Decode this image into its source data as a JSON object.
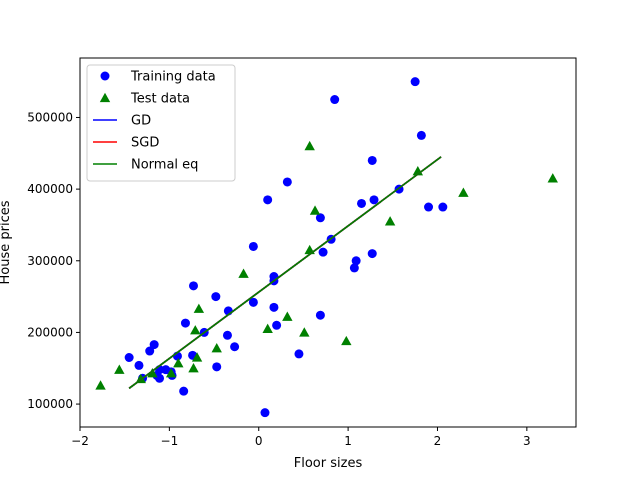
{
  "chart_data": {
    "type": "scatter",
    "title": "",
    "xlabel": "Floor sizes",
    "ylabel": "House prices",
    "xlim": [
      -2.0,
      3.55
    ],
    "ylim": [
      68000,
      583000
    ],
    "xticks": [
      -2,
      -1,
      0,
      1,
      2,
      3
    ],
    "xtick_labels": [
      "−2",
      "−1",
      "0",
      "1",
      "2",
      "3"
    ],
    "yticks": [
      100000,
      200000,
      300000,
      400000,
      500000
    ],
    "ytick_labels": [
      "100000",
      "200000",
      "300000",
      "400000",
      "500000"
    ],
    "grid": false,
    "legend_position": "top-left",
    "series": [
      {
        "name": "Training data",
        "kind": "points",
        "marker": "circle",
        "color": "#0000ff",
        "points": [
          [
            1.75,
            550000
          ],
          [
            0.85,
            525000
          ],
          [
            1.82,
            475000
          ],
          [
            1.27,
            440000
          ],
          [
            0.32,
            410000
          ],
          [
            1.29,
            385000
          ],
          [
            0.1,
            385000
          ],
          [
            1.57,
            400000
          ],
          [
            1.15,
            380000
          ],
          [
            1.9,
            375000
          ],
          [
            2.06,
            375000
          ],
          [
            0.69,
            360000
          ],
          [
            0.81,
            330000
          ],
          [
            -0.06,
            320000
          ],
          [
            0.72,
            312000
          ],
          [
            1.27,
            310000
          ],
          [
            1.09,
            300000
          ],
          [
            1.07,
            290000
          ],
          [
            0.17,
            278000
          ],
          [
            0.17,
            272000
          ],
          [
            -0.73,
            265000
          ],
          [
            -0.48,
            250000
          ],
          [
            -0.06,
            242000
          ],
          [
            0.17,
            235000
          ],
          [
            -0.34,
            230000
          ],
          [
            0.2,
            210000
          ],
          [
            -0.82,
            213000
          ],
          [
            0.69,
            224000
          ],
          [
            -0.61,
            200000
          ],
          [
            -0.35,
            196000
          ],
          [
            -0.27,
            180000
          ],
          [
            -1.17,
            183000
          ],
          [
            -1.22,
            174000
          ],
          [
            0.45,
            170000
          ],
          [
            -0.74,
            168000
          ],
          [
            -0.91,
            167000
          ],
          [
            -1.45,
            165000
          ],
          [
            -1.34,
            154000
          ],
          [
            -0.47,
            152000
          ],
          [
            -1.11,
            148000
          ],
          [
            -1.04,
            148000
          ],
          [
            -0.98,
            145000
          ],
          [
            -1.14,
            140000
          ],
          [
            -0.97,
            140000
          ],
          [
            -1.3,
            136000
          ],
          [
            -1.11,
            136000
          ],
          [
            -0.84,
            118000
          ],
          [
            0.07,
            88000
          ]
        ]
      },
      {
        "name": "Test data",
        "kind": "points",
        "marker": "triangle",
        "color": "#008000",
        "points": [
          [
            0.57,
            460000
          ],
          [
            1.78,
            425000
          ],
          [
            3.29,
            415000
          ],
          [
            2.29,
            395000
          ],
          [
            1.47,
            355000
          ],
          [
            0.63,
            370000
          ],
          [
            0.57,
            315000
          ],
          [
            -0.17,
            282000
          ],
          [
            0.32,
            222000
          ],
          [
            0.1,
            205000
          ],
          [
            -0.67,
            233000
          ],
          [
            0.51,
            200000
          ],
          [
            0.98,
            188000
          ],
          [
            -0.71,
            203000
          ],
          [
            -0.47,
            178000
          ],
          [
            -0.69,
            165000
          ],
          [
            -0.73,
            150000
          ],
          [
            -0.9,
            157000
          ],
          [
            -1.19,
            143000
          ],
          [
            -0.98,
            143000
          ],
          [
            -1.56,
            148000
          ],
          [
            -1.32,
            135000
          ],
          [
            -1.77,
            126000
          ]
        ]
      },
      {
        "name": "GD",
        "kind": "line",
        "color": "#0000ff",
        "points": [
          [
            -1.45,
            122000
          ],
          [
            2.04,
            445000
          ]
        ]
      },
      {
        "name": "SGD",
        "kind": "line",
        "color": "#ff0000",
        "points": [
          [
            -1.45,
            122000
          ],
          [
            2.04,
            445000
          ]
        ]
      },
      {
        "name": "Normal eq",
        "kind": "line",
        "color": "#008000",
        "points": [
          [
            -1.45,
            122000
          ],
          [
            2.04,
            445000
          ]
        ]
      }
    ]
  }
}
